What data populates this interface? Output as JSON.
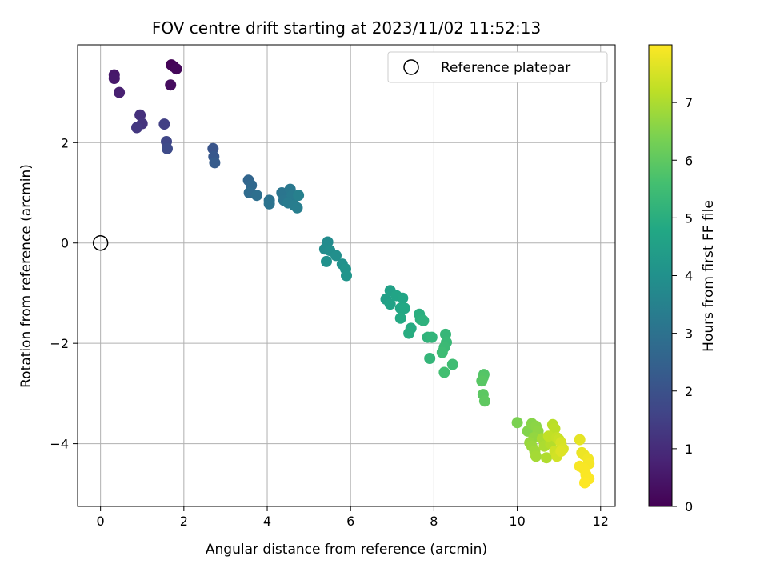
{
  "chart_data": {
    "type": "scatter",
    "title": "FOV centre drift starting at 2023/11/02 11:52:13",
    "xlabel": "Angular distance from reference (arcmin)",
    "ylabel": "Rotation from reference (arcmin)",
    "xlim": [
      -0.55,
      12.35
    ],
    "ylim": [
      -5.25,
      3.95
    ],
    "xticks": [
      0,
      2,
      4,
      6,
      8,
      10,
      12
    ],
    "yticks": [
      -4,
      -2,
      0,
      2
    ],
    "grid": true,
    "legend": {
      "label": "Reference platepar",
      "placement": "top-right"
    },
    "reference_point": {
      "x": 0,
      "y": 0
    },
    "colorbar": {
      "label": "Hours from first FF file",
      "range": [
        0,
        8
      ],
      "ticks": [
        0,
        1,
        2,
        3,
        4,
        5,
        6,
        7
      ],
      "colormap": "viridis"
    },
    "series": [
      {
        "points": [
          [
            1.7,
            3.55,
            0.05
          ],
          [
            1.75,
            3.52,
            0.1
          ],
          [
            1.82,
            3.47,
            0.15
          ],
          [
            1.68,
            3.15,
            0.25
          ],
          [
            0.33,
            3.35,
            0.5
          ],
          [
            0.33,
            3.28,
            0.55
          ],
          [
            0.45,
            3.0,
            0.7
          ],
          [
            0.95,
            2.55,
            1.1
          ],
          [
            1.0,
            2.38,
            1.2
          ],
          [
            0.87,
            2.3,
            1.3
          ],
          [
            1.53,
            2.37,
            1.5
          ],
          [
            1.58,
            2.02,
            1.7
          ],
          [
            1.6,
            1.88,
            1.8
          ],
          [
            2.7,
            1.88,
            2.1
          ],
          [
            2.72,
            1.72,
            2.2
          ],
          [
            2.74,
            1.6,
            2.3
          ],
          [
            3.55,
            1.25,
            2.6
          ],
          [
            3.62,
            1.15,
            2.7
          ],
          [
            3.57,
            1.0,
            2.8
          ],
          [
            3.75,
            0.95,
            2.9
          ],
          [
            4.05,
            0.85,
            3.0
          ],
          [
            4.05,
            0.78,
            3.05
          ],
          [
            4.35,
            1.0,
            3.1
          ],
          [
            4.4,
            0.85,
            3.15
          ],
          [
            4.55,
            1.07,
            3.2
          ],
          [
            4.6,
            0.95,
            3.25
          ],
          [
            4.5,
            0.8,
            3.3
          ],
          [
            4.65,
            0.75,
            3.35
          ],
          [
            4.72,
            0.7,
            3.4
          ],
          [
            4.75,
            0.95,
            3.45
          ],
          [
            5.45,
            0.02,
            3.8
          ],
          [
            5.38,
            -0.12,
            3.85
          ],
          [
            5.5,
            -0.15,
            3.9
          ],
          [
            5.65,
            -0.25,
            3.95
          ],
          [
            5.42,
            -0.37,
            4.0
          ],
          [
            5.8,
            -0.42,
            4.05
          ],
          [
            5.88,
            -0.52,
            4.1
          ],
          [
            5.9,
            -0.65,
            4.15
          ],
          [
            6.85,
            -1.12,
            4.5
          ],
          [
            6.95,
            -0.95,
            4.55
          ],
          [
            6.95,
            -1.22,
            4.6
          ],
          [
            7.1,
            -1.05,
            4.65
          ],
          [
            7.25,
            -1.1,
            4.7
          ],
          [
            7.2,
            -1.3,
            4.75
          ],
          [
            7.3,
            -1.3,
            4.8
          ],
          [
            7.2,
            -1.5,
            4.85
          ],
          [
            7.45,
            -1.7,
            4.9
          ],
          [
            7.4,
            -1.8,
            4.95
          ],
          [
            7.65,
            -1.42,
            5.0
          ],
          [
            7.68,
            -1.52,
            5.05
          ],
          [
            7.75,
            -1.55,
            5.1
          ],
          [
            7.85,
            -1.88,
            5.15
          ],
          [
            7.95,
            -1.88,
            5.2
          ],
          [
            7.9,
            -2.3,
            5.25
          ],
          [
            8.28,
            -1.82,
            5.3
          ],
          [
            8.3,
            -1.98,
            5.35
          ],
          [
            8.25,
            -2.08,
            5.4
          ],
          [
            8.2,
            -2.18,
            5.45
          ],
          [
            8.45,
            -2.42,
            5.5
          ],
          [
            8.25,
            -2.58,
            5.55
          ],
          [
            9.2,
            -2.62,
            5.8
          ],
          [
            9.18,
            -2.68,
            5.85
          ],
          [
            9.15,
            -2.75,
            5.9
          ],
          [
            9.18,
            -3.02,
            5.95
          ],
          [
            9.22,
            -3.15,
            6.0
          ],
          [
            10.0,
            -3.58,
            6.4
          ],
          [
            10.25,
            -3.75,
            6.5
          ],
          [
            10.35,
            -3.6,
            6.55
          ],
          [
            10.45,
            -3.65,
            6.6
          ],
          [
            10.5,
            -3.75,
            6.65
          ],
          [
            10.4,
            -3.88,
            6.7
          ],
          [
            10.3,
            -3.98,
            6.75
          ],
          [
            10.35,
            -4.05,
            6.8
          ],
          [
            10.42,
            -4.15,
            6.85
          ],
          [
            10.45,
            -4.25,
            6.9
          ],
          [
            10.6,
            -3.9,
            6.95
          ],
          [
            10.65,
            -4.05,
            7.0
          ],
          [
            10.7,
            -4.28,
            7.05
          ],
          [
            10.8,
            -4.0,
            7.1
          ],
          [
            10.85,
            -3.62,
            7.15
          ],
          [
            10.9,
            -3.7,
            7.2
          ],
          [
            10.75,
            -3.85,
            7.25
          ],
          [
            10.95,
            -3.88,
            7.3
          ],
          [
            11.0,
            -3.92,
            7.35
          ],
          [
            10.9,
            -4.15,
            7.4
          ],
          [
            10.95,
            -4.25,
            7.45
          ],
          [
            11.05,
            -3.98,
            7.5
          ],
          [
            11.1,
            -4.1,
            7.55
          ],
          [
            11.05,
            -4.15,
            7.6
          ],
          [
            11.5,
            -3.92,
            7.7
          ],
          [
            11.55,
            -4.18,
            7.75
          ],
          [
            11.6,
            -4.22,
            7.8
          ],
          [
            11.7,
            -4.3,
            7.85
          ],
          [
            11.72,
            -4.4,
            7.9
          ],
          [
            11.5,
            -4.45,
            7.92
          ],
          [
            11.6,
            -4.5,
            7.94
          ],
          [
            11.65,
            -4.62,
            7.96
          ],
          [
            11.72,
            -4.7,
            7.98
          ],
          [
            11.62,
            -4.78,
            8.0
          ]
        ]
      }
    ]
  }
}
